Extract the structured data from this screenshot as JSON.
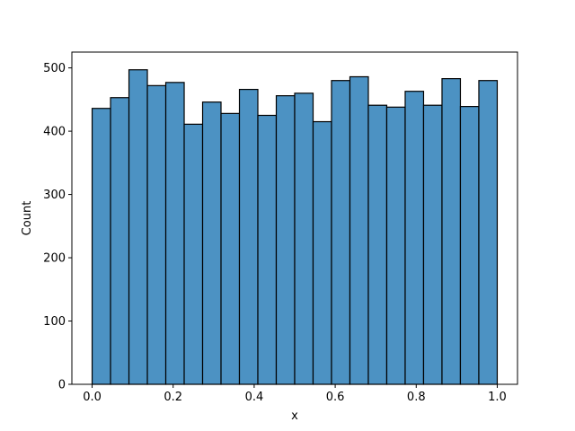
{
  "chart_data": {
    "type": "bar",
    "subtype": "histogram",
    "title": "",
    "xlabel": "x",
    "ylabel": "Count",
    "xlim": [
      -0.05,
      1.05
    ],
    "ylim": [
      0,
      525
    ],
    "grid": false,
    "legend": false,
    "bar_color": "#4c92c3",
    "edge_color": "#000000",
    "bin_edges": [
      0.0,
      0.04545,
      0.09091,
      0.13636,
      0.18182,
      0.22727,
      0.27273,
      0.31818,
      0.36364,
      0.40909,
      0.45455,
      0.5,
      0.54545,
      0.59091,
      0.63636,
      0.68182,
      0.72727,
      0.77273,
      0.81818,
      0.86364,
      0.90909,
      0.95455,
      1.0
    ],
    "values": [
      436,
      453,
      497,
      472,
      477,
      411,
      446,
      428,
      466,
      425,
      456,
      460,
      415,
      480,
      486,
      441,
      438,
      463,
      441,
      483,
      439,
      480
    ],
    "x_ticks": [
      {
        "value": 0.0,
        "label": "0.0"
      },
      {
        "value": 0.2,
        "label": "0.2"
      },
      {
        "value": 0.4,
        "label": "0.4"
      },
      {
        "value": 0.6,
        "label": "0.6"
      },
      {
        "value": 0.8,
        "label": "0.8"
      },
      {
        "value": 1.0,
        "label": "1.0"
      }
    ],
    "y_ticks": [
      {
        "value": 0,
        "label": "0"
      },
      {
        "value": 100,
        "label": "100"
      },
      {
        "value": 200,
        "label": "200"
      },
      {
        "value": 300,
        "label": "300"
      },
      {
        "value": 400,
        "label": "400"
      },
      {
        "value": 500,
        "label": "500"
      }
    ]
  }
}
